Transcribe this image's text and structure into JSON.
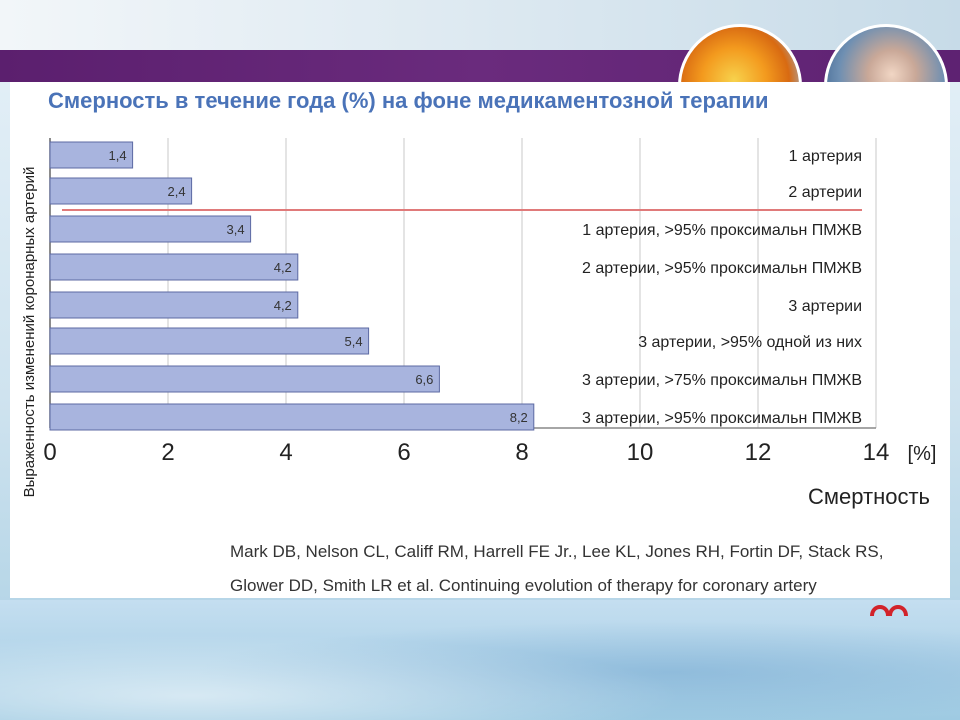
{
  "slide": {
    "title": "Смерность в течение года (%) на фоне медикаментозной терапии",
    "reference_line1": "Mark DB, Nelson CL, Califf RM, Harrell FE Jr., Lee KL, Jones RH, Fortin DF, Stack RS,",
    "reference_line2": "Glower DD, Smith LR et al. Continuing evolution of therapy for coronary artery"
  },
  "colors": {
    "bar_fill": "#a8b4de",
    "bar_stroke": "#5c6aa3",
    "title": "#4a73b8",
    "separator": "#e07a7a",
    "band": "#5b1f6e"
  },
  "icons": [
    "pills-photo",
    "surgeon-photo",
    "brand-logo"
  ],
  "chart_data": {
    "type": "bar",
    "orientation": "horizontal",
    "categories": [
      "1 артерия",
      "2 артерии",
      "1 артерия,  >95% проксимальн ПМЖВ",
      "2 артерии,  >95% проксимальн ПМЖВ",
      "3 артерии",
      "3 артерии,  >95%  одной из них",
      "3 артерии,  >75% проксимальн ПМЖВ",
      "3 артерии,  >95% проксимальн ПМЖВ"
    ],
    "values": [
      1.4,
      2.4,
      3.4,
      4.2,
      4.2,
      5.4,
      6.6,
      8.2
    ],
    "value_labels": [
      "1,4",
      "2,4",
      "3,4",
      "4,2",
      "4,2",
      "5,4",
      "6,6",
      "8,2"
    ],
    "xlim": [
      0,
      14
    ],
    "xticks": [
      0,
      2,
      4,
      6,
      8,
      10,
      12,
      14
    ],
    "xtick_labels": [
      "0",
      "2",
      "4",
      "6",
      "8",
      "10",
      "12",
      "14"
    ],
    "unit_label": "[%]",
    "xlabel": "Смертность",
    "ylabel": "Выраженность изменений коронарных артерий",
    "separator_after_index": 1,
    "grid": true
  }
}
